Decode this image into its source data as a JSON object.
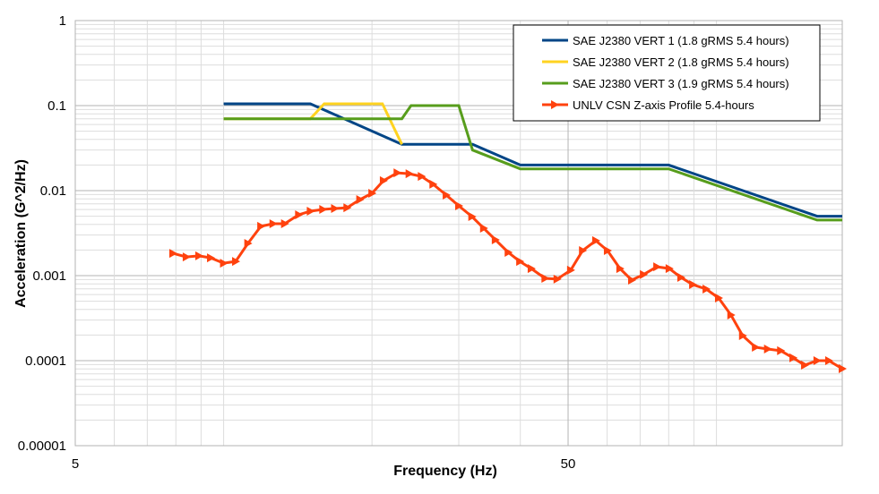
{
  "chart_data": {
    "type": "line",
    "title": "",
    "xlabel": "Frequency (Hz)",
    "ylabel": "Acceleration (G^2/Hz)",
    "xscale": "log",
    "yscale": "log",
    "xlim": [
      5,
      180
    ],
    "ylim": [
      1e-05,
      1
    ],
    "x_ticks": [
      {
        "value": 5,
        "label": "5"
      },
      {
        "value": 50,
        "label": "50"
      }
    ],
    "y_ticks": [
      {
        "value": 1,
        "label": "1"
      },
      {
        "value": 0.1,
        "label": "0.1"
      },
      {
        "value": 0.01,
        "label": "0.01"
      },
      {
        "value": 0.001,
        "label": "0.001"
      },
      {
        "value": 0.0001,
        "label": "0.0001"
      },
      {
        "value": 1e-05,
        "label": "0.00001"
      }
    ],
    "grid": true,
    "legend_position": "top-right",
    "series": [
      {
        "name": "SAE J2380 VERT 1 (1.8 gRMS 5.4 hours)",
        "color": "#004586",
        "marker": "none",
        "x": [
          10,
          15,
          23,
          32,
          40,
          80,
          160,
          180
        ],
        "y": [
          0.105,
          0.105,
          0.035,
          0.035,
          0.02,
          0.02,
          0.005,
          0.005
        ]
      },
      {
        "name": "SAE J2380 VERT 2 (1.8 gRMS 5.4 hours)",
        "color": "#ffd320",
        "marker": "none",
        "x": [
          10,
          15,
          16,
          21,
          23
        ],
        "y": [
          0.07,
          0.07,
          0.105,
          0.105,
          0.035
        ]
      },
      {
        "name": "SAE J2380 VERT 3 (1.9 gRMS 5.4 hours)",
        "color": "#579d1c",
        "marker": "none",
        "x": [
          10,
          15,
          23,
          24,
          30,
          32,
          40,
          80,
          160,
          180
        ],
        "y": [
          0.07,
          0.07,
          0.07,
          0.1,
          0.1,
          0.03,
          0.018,
          0.018,
          0.0045,
          0.0045
        ]
      },
      {
        "name": "UNLV CSN Z-axis Profile 5.4-hours",
        "color": "#ff420e",
        "marker": "triangle-right",
        "x": [
          7.89,
          8.4,
          8.91,
          9.41,
          10.0,
          10.58,
          11.2,
          11.9,
          12.6,
          13.3,
          14.2,
          15.0,
          15.9,
          16.8,
          17.8,
          18.9,
          20.0,
          21.1,
          22.5,
          23.8,
          25.2,
          26.6,
          28.3,
          30.0,
          31.9,
          33.7,
          35.6,
          37.8,
          39.9,
          42.1,
          44.9,
          47.5,
          50.6,
          53.5,
          56.9,
          60.1,
          63.7,
          67.3,
          71.1,
          75.7,
          80.2,
          84.7,
          89.5,
          95.3,
          101,
          107,
          113,
          120,
          127,
          135,
          143,
          151,
          160,
          169,
          180
        ],
        "y": [
          0.00183,
          0.00166,
          0.00171,
          0.00162,
          0.0014,
          0.00147,
          0.00239,
          0.0038,
          0.00408,
          0.00408,
          0.0052,
          0.00573,
          0.00601,
          0.00616,
          0.0063,
          0.00785,
          0.0093,
          0.0131,
          0.0162,
          0.0158,
          0.0147,
          0.0119,
          0.00886,
          0.00662,
          0.00495,
          0.00361,
          0.00264,
          0.00188,
          0.00147,
          0.00121,
          0.00093,
          0.00091,
          0.00116,
          0.00197,
          0.00258,
          0.00197,
          0.00121,
          0.000886,
          0.00103,
          0.00127,
          0.00121,
          0.000953,
          0.000785,
          0.000695,
          0.000546,
          0.000344,
          0.000197,
          0.000144,
          0.000137,
          0.000131,
          0.000108,
          8.86e-05,
          0.0001,
          0.0001,
          8.04e-05
        ]
      }
    ]
  }
}
